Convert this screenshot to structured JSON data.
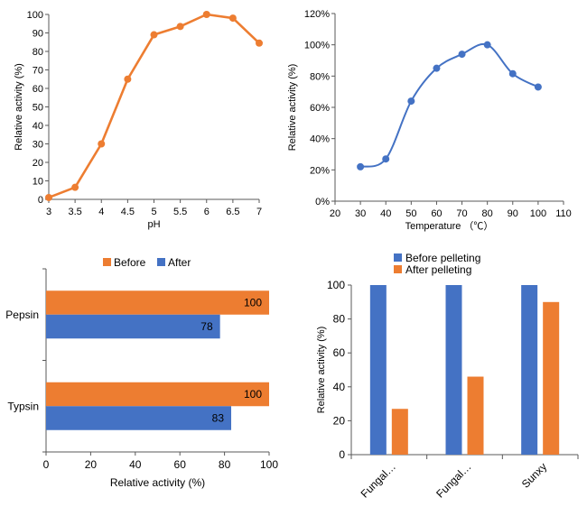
{
  "colors": {
    "orange": "#ED7D31",
    "blue": "#4472C4",
    "axis": "#595959"
  },
  "chart_data": [
    {
      "id": "ph",
      "type": "line",
      "title": "",
      "xlabel": "pH",
      "ylabel": "Relative activity (%)",
      "x": [
        3,
        3.5,
        4,
        4.5,
        5,
        5.5,
        6,
        6.5,
        7
      ],
      "values": [
        1,
        6.5,
        30,
        65,
        89,
        93.5,
        100,
        98,
        84.5
      ],
      "xlim": [
        3,
        7
      ],
      "ylim": [
        0,
        100
      ],
      "xticks": [
        "3",
        "3.5",
        "4",
        "4.5",
        "5",
        "5.5",
        "6",
        "6.5",
        "7"
      ],
      "xtick_values": [
        3,
        3.5,
        4,
        4.5,
        5,
        5.5,
        6,
        6.5,
        7
      ],
      "yticks": [
        "0",
        "10",
        "20",
        "30",
        "40",
        "50",
        "60",
        "70",
        "80",
        "90",
        "100"
      ],
      "ytick_values": [
        0,
        10,
        20,
        30,
        40,
        50,
        60,
        70,
        80,
        90,
        100
      ],
      "color": "orange",
      "smooth": false,
      "grid": false
    },
    {
      "id": "temperature",
      "type": "line",
      "title": "",
      "xlabel": "Temperature （℃）",
      "ylabel": "Relative activity (%)",
      "x": [
        30,
        40,
        50,
        60,
        70,
        80,
        90,
        100
      ],
      "values": [
        22,
        27,
        64,
        85,
        94,
        100,
        81.5,
        73
      ],
      "xlim": [
        20,
        110
      ],
      "ylim": [
        0,
        120
      ],
      "xticks": [
        "20",
        "30",
        "40",
        "50",
        "60",
        "70",
        "80",
        "90",
        "100",
        "110"
      ],
      "xtick_values": [
        20,
        30,
        40,
        50,
        60,
        70,
        80,
        90,
        100,
        110
      ],
      "yticks": [
        "0%",
        "20%",
        "40%",
        "60%",
        "80%",
        "100%",
        "120%"
      ],
      "ytick_values": [
        0,
        20,
        40,
        60,
        80,
        100,
        120
      ],
      "color": "blue",
      "smooth": true,
      "grid": false
    },
    {
      "id": "protease",
      "type": "bar",
      "orientation": "horizontal",
      "title": "",
      "xlabel": "Relative activity (%)",
      "ylabel": "",
      "categories": [
        "Pepsin",
        "Typsin"
      ],
      "series": [
        {
          "name": "Before",
          "values": [
            100,
            100
          ],
          "color": "orange"
        },
        {
          "name": "After",
          "values": [
            78,
            83
          ],
          "color": "blue"
        }
      ],
      "data_labels": true,
      "xlim": [
        0,
        100
      ],
      "xticks": [
        "0",
        "20",
        "40",
        "60",
        "80",
        "100"
      ],
      "xtick_values": [
        0,
        20,
        40,
        60,
        80,
        100
      ],
      "legend": "top",
      "grid": false
    },
    {
      "id": "pelleting",
      "type": "bar",
      "orientation": "vertical",
      "title": "",
      "xlabel": "",
      "ylabel": "Relative activity (%)",
      "categories": [
        "Fungal…",
        "Fungal…",
        "Sunxy"
      ],
      "series": [
        {
          "name": "Before pelleting",
          "values": [
            100,
            100,
            100
          ],
          "color": "blue"
        },
        {
          "name": "After pelleting",
          "values": [
            27,
            46,
            90
          ],
          "color": "orange"
        }
      ],
      "ylim": [
        0,
        100
      ],
      "yticks": [
        "0",
        "20",
        "40",
        "60",
        "80",
        "100"
      ],
      "ytick_values": [
        0,
        20,
        40,
        60,
        80,
        100
      ],
      "legend": "top-left",
      "grid": false
    }
  ]
}
